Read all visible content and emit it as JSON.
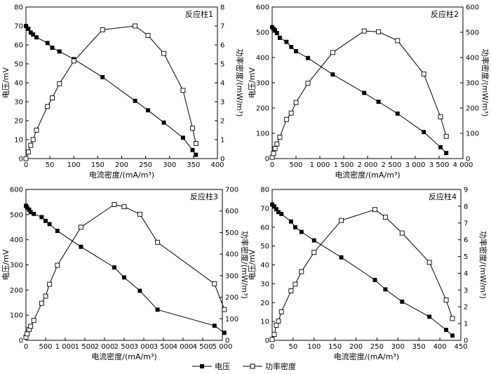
{
  "chart_data": [
    {
      "type": "line",
      "title": "反应柱1",
      "xlabel": "电流密度/(mA/m³)",
      "ylabel": "电压/mV",
      "y2label": "功率密度/(mW/m³)",
      "xlim": [
        0,
        400
      ],
      "xticks": [
        0,
        50,
        100,
        150,
        200,
        250,
        300,
        350,
        400
      ],
      "ylim": [
        0,
        80
      ],
      "yticks": [
        0,
        10,
        20,
        30,
        40,
        50,
        60,
        70,
        80
      ],
      "y2lim": [
        0,
        8
      ],
      "y2ticks": [
        0,
        1,
        2,
        3,
        4,
        5,
        6,
        7,
        8
      ],
      "series": [
        {
          "name": "电压",
          "axis": "left",
          "marker": "filled-square",
          "x": [
            0,
            5,
            10,
            15,
            22,
            45,
            55,
            70,
            100,
            160,
            228,
            255,
            288,
            328,
            348,
            355
          ],
          "y": [
            70,
            68.5,
            66.5,
            65.5,
            64,
            61,
            58.5,
            56.5,
            52.5,
            43,
            30.5,
            25.5,
            19,
            11,
            4.5,
            2
          ]
        },
        {
          "name": "功率密度",
          "axis": "right",
          "marker": "open-square",
          "x": [
            0,
            5,
            10,
            15,
            22,
            45,
            55,
            70,
            100,
            160,
            228,
            255,
            288,
            328,
            348,
            355
          ],
          "y": [
            0,
            0.35,
            0.7,
            1.0,
            1.5,
            2.75,
            3.2,
            3.95,
            5.15,
            6.8,
            7.0,
            6.5,
            5.55,
            3.6,
            1.6,
            0.8
          ]
        }
      ]
    },
    {
      "type": "line",
      "title": "反应柱2",
      "xlabel": "电流密度/(mA/m³)",
      "ylabel": "电压/mV",
      "y2label": "功率密度/(mW/m³)",
      "xlim": [
        0,
        4000
      ],
      "xticks": [
        0,
        500,
        1000,
        1500,
        2000,
        2500,
        3000,
        3500,
        4000
      ],
      "xtick_labels": [
        "0",
        "500",
        "1 000",
        "1 500",
        "2 000",
        "2 500",
        "3 000",
        "3 500",
        "4 000"
      ],
      "ylim": [
        0,
        600
      ],
      "yticks": [
        0,
        100,
        200,
        300,
        400,
        500,
        600
      ],
      "y2lim": [
        0,
        600
      ],
      "y2ticks": [
        0,
        100,
        200,
        300,
        400,
        500,
        600
      ],
      "series": [
        {
          "name": "电压",
          "axis": "left",
          "marker": "filled-square",
          "x": [
            0,
            30,
            60,
            100,
            160,
            300,
            400,
            500,
            750,
            1270,
            1930,
            2230,
            2630,
            3180,
            3530,
            3650
          ],
          "y": [
            520,
            513,
            508,
            497,
            478,
            462,
            442,
            425,
            398,
            333,
            260,
            225,
            178,
            105,
            45,
            22
          ]
        },
        {
          "name": "功率密度",
          "axis": "right",
          "marker": "open-square",
          "x": [
            0,
            30,
            60,
            100,
            160,
            300,
            400,
            500,
            750,
            1270,
            1930,
            2230,
            2630,
            3180,
            3530,
            3650
          ],
          "y": [
            5,
            20,
            40,
            58,
            85,
            155,
            180,
            222,
            298,
            420,
            505,
            502,
            467,
            335,
            165,
            88
          ]
        }
      ]
    },
    {
      "type": "line",
      "title": "反应柱3",
      "xlabel": "电流密度/(mA/m³)",
      "ylabel": "电压/mV",
      "y2label": "功率密度/(mW/m³)",
      "xlim": [
        0,
        5000
      ],
      "xticks": [
        0,
        500,
        1000,
        1500,
        2000,
        2500,
        3000,
        3500,
        4000,
        4500,
        5000
      ],
      "xtick_labels": [
        "0",
        "500",
        "1 000",
        "1 500",
        "2 000",
        "2 500",
        "3 000",
        "3 500",
        "4 000",
        "4 500",
        "5 000"
      ],
      "ylim": [
        0,
        600
      ],
      "yticks": [
        0,
        100,
        200,
        300,
        400,
        500,
        600
      ],
      "y2lim": [
        0,
        700
      ],
      "y2ticks": [
        0,
        100,
        200,
        300,
        400,
        500,
        600,
        700
      ],
      "series": [
        {
          "name": "电压",
          "axis": "left",
          "marker": "filled-square",
          "x": [
            0,
            30,
            80,
            120,
            200,
            400,
            500,
            600,
            800,
            1400,
            2250,
            2500,
            2900,
            3350,
            4800,
            5050
          ],
          "y": [
            535,
            528,
            520,
            510,
            503,
            490,
            475,
            462,
            435,
            372,
            290,
            250,
            197,
            122,
            58,
            30
          ]
        },
        {
          "name": "功率密度",
          "axis": "right",
          "marker": "open-square",
          "x": [
            0,
            30,
            80,
            120,
            200,
            400,
            500,
            600,
            800,
            1400,
            2250,
            2500,
            2900,
            3350,
            4800,
            5050
          ],
          "y": [
            15,
            30,
            50,
            65,
            92,
            172,
            205,
            260,
            348,
            525,
            630,
            620,
            585,
            455,
            262,
            143
          ]
        }
      ]
    },
    {
      "type": "line",
      "title": "反应柱4",
      "xlabel": "电流密度/(mA/m³)",
      "ylabel": "电压/mV",
      "y2label": "功率密度/(mW/m³)",
      "xlim": [
        0,
        450
      ],
      "xticks": [
        0,
        50,
        100,
        150,
        200,
        250,
        300,
        350,
        400,
        450
      ],
      "ylim": [
        0,
        80
      ],
      "yticks": [
        0,
        10,
        20,
        30,
        40,
        50,
        60,
        70,
        80
      ],
      "y2lim": [
        0,
        9
      ],
      "y2ticks": [
        0,
        1,
        2,
        3,
        4,
        5,
        6,
        7,
        8,
        9
      ],
      "series": [
        {
          "name": "电压",
          "axis": "left",
          "marker": "filled-square",
          "x": [
            0,
            5,
            10,
            15,
            22,
            45,
            55,
            70,
            100,
            165,
            245,
            270,
            310,
            375,
            415,
            430
          ],
          "y": [
            72,
            71,
            69.5,
            68,
            67,
            63,
            60,
            57.5,
            53,
            44,
            32,
            27,
            20.5,
            12.5,
            5.5,
            2.5
          ]
        },
        {
          "name": "功率密度",
          "axis": "right",
          "marker": "open-square",
          "x": [
            0,
            5,
            10,
            15,
            22,
            45,
            55,
            70,
            100,
            165,
            245,
            270,
            310,
            375,
            415,
            430
          ],
          "y": [
            0.05,
            0.35,
            0.9,
            1.15,
            1.7,
            2.95,
            3.35,
            4.1,
            5.25,
            7.15,
            7.8,
            7.35,
            6.4,
            4.65,
            2.4,
            1.3
          ]
        }
      ]
    }
  ],
  "legend": {
    "placement": "bottom-center",
    "entries": [
      {
        "label": "电压",
        "marker": "filled-square"
      },
      {
        "label": "功率密度",
        "marker": "open-square"
      }
    ]
  }
}
